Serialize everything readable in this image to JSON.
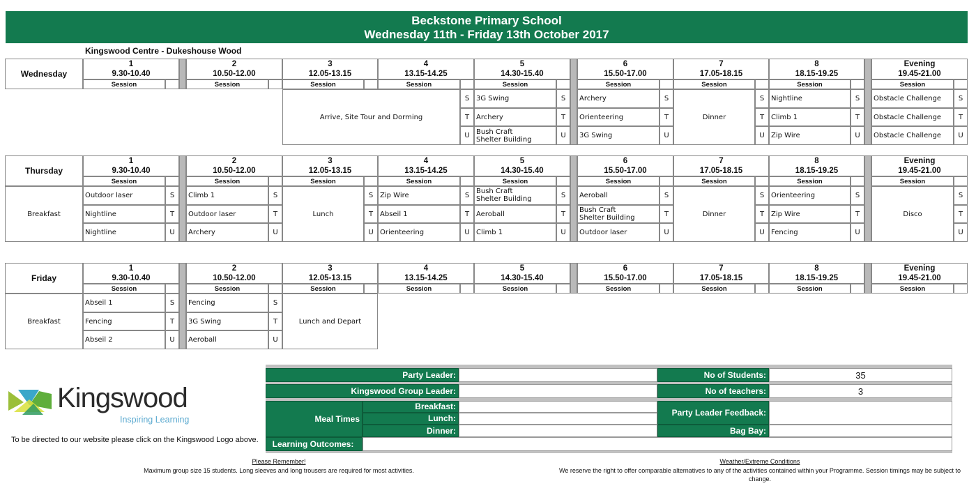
{
  "header": {
    "school": "Beckstone Primary School",
    "dates": "Wednesday 11th - Friday 13th October 2017"
  },
  "venue": "Kingswood Centre - Dukeshouse Wood",
  "session_label": "Session",
  "group_letters": [
    "S",
    "T",
    "U"
  ],
  "columns": [
    {
      "num": "1",
      "time": "9.30-10.40"
    },
    {
      "num": "2",
      "time": "10.50-12.00"
    },
    {
      "num": "3",
      "time": "12.05-13.15"
    },
    {
      "num": "4",
      "time": "13.15-14.25"
    },
    {
      "num": "5",
      "time": "14.30-15.40"
    },
    {
      "num": "6",
      "time": "15.50-17.00"
    },
    {
      "num": "7",
      "time": "17.05-18.15"
    },
    {
      "num": "8",
      "time": "18.15-19.25"
    },
    {
      "num": "Evening",
      "time": "19.45-21.00"
    }
  ],
  "days": [
    {
      "name": "Wednesday",
      "merged": [
        {
          "from": 2,
          "to": 3,
          "text": "Arrive, Site Tour and Dorming",
          "letters": true
        },
        {
          "from": 6,
          "to": 6,
          "text": "Dinner",
          "letters": true
        }
      ],
      "slots": [
        {
          "col": 4,
          "items": [
            "3G Swing",
            "Archery",
            "Bush Craft\nShelter Building"
          ]
        },
        {
          "col": 5,
          "items": [
            "Archery",
            "Orienteering",
            "3G Swing"
          ]
        },
        {
          "col": 7,
          "items": [
            "Nightline",
            "Climb 1",
            "Zip Wire"
          ]
        },
        {
          "col": 8,
          "items": [
            "Obstacle Challenge",
            "Obstacle Challenge",
            "Obstacle Challenge"
          ]
        }
      ]
    },
    {
      "name": "Thursday",
      "merged": [
        {
          "from": -1,
          "to": -1,
          "text": "Breakfast",
          "letters": false
        },
        {
          "from": 2,
          "to": 2,
          "text": "Lunch",
          "letters": true
        },
        {
          "from": 6,
          "to": 6,
          "text": "Dinner",
          "letters": true
        },
        {
          "from": 8,
          "to": 8,
          "text": "Disco",
          "letters": true
        }
      ],
      "slots": [
        {
          "col": 0,
          "items": [
            "Outdoor laser",
            "Nightline",
            "Nightline"
          ]
        },
        {
          "col": 1,
          "items": [
            "Climb 1",
            "Outdoor laser",
            "Archery"
          ]
        },
        {
          "col": 3,
          "items": [
            "Zip Wire",
            "Abseil 1",
            "Orienteering"
          ]
        },
        {
          "col": 4,
          "items": [
            "Bush Craft\nShelter Building",
            "Aeroball",
            "Climb 1"
          ]
        },
        {
          "col": 5,
          "items": [
            "Aeroball",
            "Bush Craft\nShelter Building",
            "Outdoor laser"
          ]
        },
        {
          "col": 7,
          "items": [
            "Orienteering",
            "Zip Wire",
            "Fencing"
          ]
        }
      ]
    },
    {
      "name": "Friday",
      "merged": [
        {
          "from": -1,
          "to": -1,
          "text": "Breakfast",
          "letters": false
        },
        {
          "from": 2,
          "to": 2,
          "text": "Lunch and Depart",
          "letters": false
        }
      ],
      "slots": [
        {
          "col": 0,
          "items": [
            "Abseil 1",
            "Fencing",
            "Abseil 2"
          ]
        },
        {
          "col": 1,
          "items": [
            "Fencing",
            "3G Swing",
            "Aeroball"
          ]
        }
      ]
    }
  ],
  "logo": {
    "name": "Kingswood",
    "tagline": "Inspiring Learning",
    "caption": "To be directed to our website please click on the Kingswood Logo above."
  },
  "info": {
    "party_leader_label": "Party Leader:",
    "party_leader": "",
    "group_leader_label": "Kingswood Group Leader:",
    "group_leader": "",
    "meal_times_label": "Meal Times",
    "breakfast_label": "Breakfast:",
    "lunch_label": "Lunch:",
    "dinner_label": "Dinner:",
    "learning_outcomes_label": "Learning Outcomes:",
    "students_label": "No of Students:",
    "students": "35",
    "teachers_label": "No of teachers:",
    "teachers": "3",
    "feedback_label": "Party Leader Feedback:",
    "bag_bay_label": "Bag Bay:"
  },
  "footer": {
    "remember_title": "Please Remember!",
    "remember_text": "Maximum group size 15 students. Long sleeves and long trousers are required for most activities.",
    "weather_title": "Weather/Extreme Conditions",
    "weather_text": "We reserve the right to offer comparable alternatives to any of the activities contained within your Programme.  Session timings may be subject to change."
  },
  "colors": {
    "brand_green": "#137a4f",
    "gap_gray": "#b9b9b9"
  }
}
